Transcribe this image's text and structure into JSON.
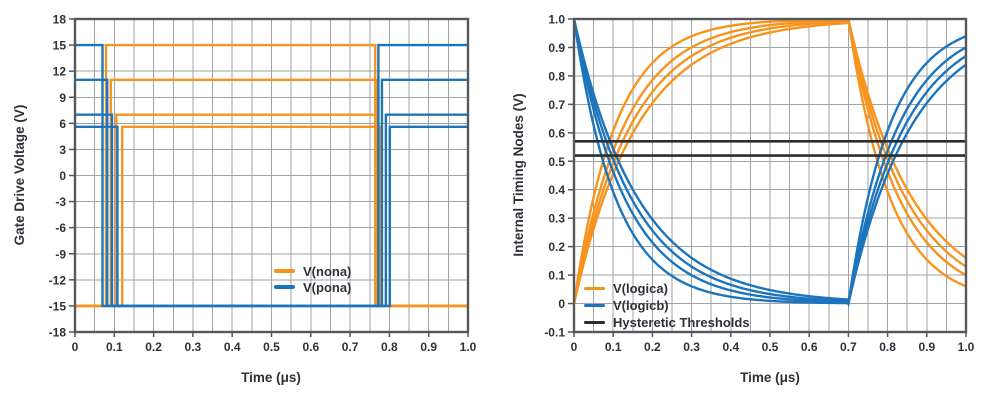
{
  "colors": {
    "orange": "#F7941E",
    "blue": "#1C75BC",
    "threshold_black": "#2B2D33",
    "grid": "#A0A2A6",
    "frame": "#55575A",
    "text": "#2F3138",
    "background": "#FFFFFF"
  },
  "chart_data": [
    {
      "type": "line",
      "title": "",
      "xlabel": "Time (μs)",
      "ylabel": "Gate Drive Voltage (V)",
      "xlim": [
        0,
        1.0
      ],
      "ylim": [
        -18,
        18
      ],
      "x_grid_step": 0.05,
      "y_grid_step": 3,
      "grid": true,
      "x_ticks": [
        {
          "v": 0,
          "label": "0"
        },
        {
          "v": 0.1,
          "label": "0.1"
        },
        {
          "v": 0.2,
          "label": "0.2"
        },
        {
          "v": 0.3,
          "label": "0.3"
        },
        {
          "v": 0.4,
          "label": "0.4"
        },
        {
          "v": 0.5,
          "label": "0.5"
        },
        {
          "v": 0.6,
          "label": "0.6"
        },
        {
          "v": 0.7,
          "label": "0.7"
        },
        {
          "v": 0.8,
          "label": "0.8"
        },
        {
          "v": 0.9,
          "label": "0.9"
        },
        {
          "v": 1.0,
          "label": "1.0"
        }
      ],
      "y_ticks": [
        {
          "v": 18,
          "label": "18"
        },
        {
          "v": 15,
          "label": "15"
        },
        {
          "v": 12,
          "label": "12"
        },
        {
          "v": 9,
          "label": "9"
        },
        {
          "v": 6,
          "label": "6"
        },
        {
          "v": 3,
          "label": "3"
        },
        {
          "v": 0,
          "label": "0"
        },
        {
          "v": -3,
          "label": "-3"
        },
        {
          "v": -6,
          "label": "-6"
        },
        {
          "v": -9,
          "label": "-9"
        },
        {
          "v": -12,
          "label": "-12"
        },
        {
          "v": -15,
          "label": "-15"
        },
        {
          "v": -18,
          "label": "-18"
        }
      ],
      "legend": [
        {
          "name": "V(nona)",
          "color": "#F7941E"
        },
        {
          "name": "V(pona)",
          "color": "#1C75BC"
        }
      ],
      "series": [
        {
          "name": "V(nona)",
          "group": "orange",
          "color": "#F7941E",
          "points": [
            [
              0,
              -15
            ],
            [
              0.079,
              -15
            ],
            [
              0.079,
              15
            ],
            [
              0.764,
              15
            ],
            [
              0.764,
              -15
            ],
            [
              1,
              -15
            ]
          ]
        },
        {
          "name": "V(nona)",
          "group": "orange",
          "color": "#F7941E",
          "points": [
            [
              0,
              -15
            ],
            [
              0.091,
              -15
            ],
            [
              0.091,
              11
            ],
            [
              0.767,
              11
            ],
            [
              0.767,
              -15
            ],
            [
              1,
              -15
            ]
          ]
        },
        {
          "name": "V(nona)",
          "group": "orange",
          "color": "#F7941E",
          "points": [
            [
              0,
              -15
            ],
            [
              0.105,
              -15
            ],
            [
              0.105,
              7
            ],
            [
              0.771,
              7
            ],
            [
              0.771,
              -15
            ],
            [
              1,
              -15
            ]
          ]
        },
        {
          "name": "V(nona)",
          "group": "orange",
          "color": "#F7941E",
          "points": [
            [
              0,
              -15
            ],
            [
              0.12,
              -15
            ],
            [
              0.12,
              5.6
            ],
            [
              0.775,
              5.6
            ],
            [
              0.775,
              -15
            ],
            [
              1,
              -15
            ]
          ]
        },
        {
          "name": "V(pona)",
          "group": "blue",
          "color": "#1C75BC",
          "points": [
            [
              0,
              15
            ],
            [
              0.07,
              15
            ],
            [
              0.07,
              -15
            ],
            [
              0.772,
              -15
            ],
            [
              0.772,
              15
            ],
            [
              1,
              15
            ]
          ]
        },
        {
          "name": "V(pona)",
          "group": "blue",
          "color": "#1C75BC",
          "points": [
            [
              0,
              11
            ],
            [
              0.082,
              11
            ],
            [
              0.082,
              -15
            ],
            [
              0.781,
              -15
            ],
            [
              0.781,
              11
            ],
            [
              1,
              11
            ]
          ]
        },
        {
          "name": "V(pona)",
          "group": "blue",
          "color": "#1C75BC",
          "points": [
            [
              0,
              7
            ],
            [
              0.094,
              7
            ],
            [
              0.094,
              -15
            ],
            [
              0.791,
              -15
            ],
            [
              0.791,
              7
            ],
            [
              1,
              7
            ]
          ]
        },
        {
          "name": "V(pona)",
          "group": "blue",
          "color": "#1C75BC",
          "points": [
            [
              0,
              5.6
            ],
            [
              0.108,
              5.6
            ],
            [
              0.108,
              -15
            ],
            [
              0.801,
              -15
            ],
            [
              0.801,
              5.6
            ],
            [
              1,
              5.6
            ]
          ]
        }
      ]
    },
    {
      "type": "line",
      "title": "",
      "xlabel": "Time (μs)",
      "ylabel": "Internal Timing Nodes (V)",
      "xlim": [
        0,
        1.0
      ],
      "ylim": [
        -0.1,
        1.0
      ],
      "x_grid_step": 0.05,
      "y_grid_step": 0.1,
      "grid": true,
      "x_ticks": [
        {
          "v": 0,
          "label": "0"
        },
        {
          "v": 0.1,
          "label": "0.1"
        },
        {
          "v": 0.2,
          "label": "0.2"
        },
        {
          "v": 0.3,
          "label": "0.3"
        },
        {
          "v": 0.4,
          "label": "0.4"
        },
        {
          "v": 0.5,
          "label": "0.5"
        },
        {
          "v": 0.6,
          "label": "0.6"
        },
        {
          "v": 0.7,
          "label": "0.7"
        },
        {
          "v": 0.8,
          "label": "0.8"
        },
        {
          "v": 0.9,
          "label": "0.9"
        },
        {
          "v": 1.0,
          "label": "1.0"
        }
      ],
      "y_ticks": [
        {
          "v": 1.0,
          "label": "1.0"
        },
        {
          "v": 0.9,
          "label": "0.9"
        },
        {
          "v": 0.8,
          "label": "0.8"
        },
        {
          "v": 0.7,
          "label": "0.7"
        },
        {
          "v": 0.6,
          "label": "0.6"
        },
        {
          "v": 0.5,
          "label": "0.5"
        },
        {
          "v": 0.4,
          "label": "0.4"
        },
        {
          "v": 0.3,
          "label": "0.3"
        },
        {
          "v": 0.2,
          "label": "0.2"
        },
        {
          "v": 0.1,
          "label": "0.1"
        },
        {
          "v": 0,
          "label": "0"
        },
        {
          "v": -0.1,
          "label": "-0.1"
        }
      ],
      "thresholds": [
        0.57,
        0.52
      ],
      "switch_time": 0.7,
      "legend": [
        {
          "name": "V(logica)",
          "color": "#F7941E"
        },
        {
          "name": "V(logicb)",
          "color": "#1C75BC"
        },
        {
          "name": "Hysteretic Thresholds",
          "color": "#2B2D33"
        }
      ],
      "series": [
        {
          "name": "V(logica)",
          "group": "orange",
          "color": "#F7941E",
          "mode": "rise-fall",
          "tau": 0.107,
          "switch": 0.7
        },
        {
          "name": "V(logica)",
          "group": "orange",
          "color": "#F7941E",
          "mode": "rise-fall",
          "tau": 0.13,
          "switch": 0.7
        },
        {
          "name": "V(logica)",
          "group": "orange",
          "color": "#F7941E",
          "mode": "rise-fall",
          "tau": 0.147,
          "switch": 0.7
        },
        {
          "name": "V(logica)",
          "group": "orange",
          "color": "#F7941E",
          "mode": "rise-fall",
          "tau": 0.164,
          "switch": 0.7
        },
        {
          "name": "V(logicb)",
          "group": "blue",
          "color": "#1C75BC",
          "mode": "fall-rise",
          "tau": 0.107,
          "switch": 0.7
        },
        {
          "name": "V(logicb)",
          "group": "blue",
          "color": "#1C75BC",
          "mode": "fall-rise",
          "tau": 0.13,
          "switch": 0.7
        },
        {
          "name": "V(logicb)",
          "group": "blue",
          "color": "#1C75BC",
          "mode": "fall-rise",
          "tau": 0.147,
          "switch": 0.7
        },
        {
          "name": "V(logicb)",
          "group": "blue",
          "color": "#1C75BC",
          "mode": "fall-rise",
          "tau": 0.164,
          "switch": 0.7
        }
      ]
    }
  ]
}
